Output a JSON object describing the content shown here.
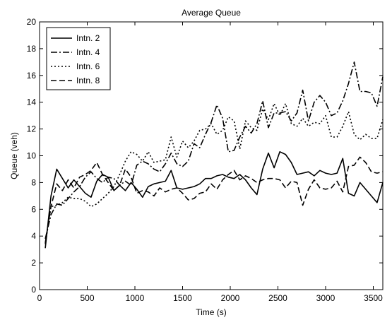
{
  "chart_data": {
    "type": "line",
    "title": "Average Queue",
    "xlabel": "Time (s)",
    "ylabel": "Queue (veh)",
    "xlim": [
      0,
      3600
    ],
    "ylim": [
      0,
      20
    ],
    "x_ticks": [
      0,
      500,
      1000,
      1500,
      2000,
      2500,
      3000,
      3500
    ],
    "y_ticks": [
      0,
      2,
      4,
      6,
      8,
      10,
      12,
      14,
      16,
      18,
      20
    ],
    "grid": false,
    "legend_position": "top-left",
    "x": [
      60,
      120,
      180,
      240,
      300,
      360,
      420,
      480,
      540,
      600,
      660,
      720,
      780,
      840,
      900,
      960,
      1020,
      1080,
      1140,
      1200,
      1260,
      1320,
      1380,
      1440,
      1500,
      1560,
      1620,
      1680,
      1740,
      1800,
      1860,
      1920,
      1980,
      2040,
      2100,
      2160,
      2220,
      2280,
      2340,
      2400,
      2460,
      2520,
      2580,
      2640,
      2700,
      2760,
      2820,
      2880,
      2940,
      3000,
      3060,
      3120,
      3180,
      3240,
      3300,
      3360,
      3420,
      3480,
      3540,
      3600
    ],
    "series": [
      {
        "name": "Intn. 2",
        "style": "solid",
        "values": [
          3.1,
          7.0,
          9.0,
          8.3,
          7.6,
          8.2,
          7.7,
          7.2,
          6.9,
          8.1,
          8.6,
          8.4,
          7.4,
          7.8,
          7.4,
          8.0,
          7.5,
          6.9,
          7.7,
          7.9,
          8.0,
          8.1,
          8.9,
          7.6,
          7.5,
          7.6,
          7.7,
          7.9,
          8.3,
          8.3,
          8.5,
          8.6,
          8.4,
          8.3,
          8.6,
          8.2,
          7.6,
          7.1,
          9.0,
          10.2,
          9.1,
          10.3,
          10.1,
          9.5,
          8.6,
          8.7,
          8.8,
          8.5,
          8.9,
          8.7,
          8.6,
          8.7,
          9.8,
          7.2,
          7.0,
          8.0,
          7.5,
          7.0,
          6.5,
          8.0
        ]
      },
      {
        "name": "Intn. 4",
        "style": "dashdot",
        "values": [
          3.8,
          5.6,
          6.4,
          6.3,
          6.8,
          7.3,
          7.7,
          8.4,
          8.8,
          8.3,
          8.0,
          8.4,
          8.3,
          7.8,
          8.1,
          7.8,
          9.3,
          9.6,
          9.4,
          9.0,
          8.8,
          9.4,
          10.2,
          9.4,
          9.2,
          9.6,
          10.9,
          10.6,
          11.6,
          12.5,
          13.8,
          12.8,
          10.3,
          10.4,
          11.4,
          12.2,
          11.7,
          12.4,
          14.1,
          12.1,
          13.2,
          13.2,
          13.3,
          12.6,
          13.2,
          14.9,
          12.6,
          14.0,
          14.5,
          14.0,
          13.0,
          13.2,
          14.1,
          15.4,
          17.0,
          14.8,
          14.8,
          14.7,
          13.7,
          15.9
        ]
      },
      {
        "name": "Intn. 6",
        "style": "dotted",
        "values": [
          3.4,
          6.2,
          6.3,
          6.5,
          6.9,
          6.8,
          6.8,
          6.6,
          6.2,
          6.4,
          6.8,
          7.2,
          7.7,
          8.6,
          9.6,
          10.3,
          10.1,
          9.6,
          10.3,
          9.5,
          9.6,
          9.7,
          11.4,
          9.9,
          11.1,
          10.6,
          11.1,
          11.9,
          12.0,
          12.4,
          11.6,
          11.9,
          12.9,
          12.6,
          10.5,
          12.6,
          12.1,
          11.9,
          13.5,
          12.7,
          13.9,
          13.0,
          13.9,
          12.4,
          12.2,
          12.8,
          12.2,
          12.5,
          12.4,
          13.0,
          11.4,
          11.4,
          12.2,
          13.3,
          11.6,
          11.2,
          11.6,
          11.3,
          11.3,
          12.7
        ]
      },
      {
        "name": "Intn. 8",
        "style": "dashed",
        "values": [
          3.5,
          6.2,
          7.9,
          7.4,
          8.2,
          7.6,
          8.4,
          8.6,
          8.9,
          9.5,
          8.6,
          8.0,
          7.4,
          7.8,
          9.0,
          8.4,
          7.2,
          7.4,
          7.3,
          7.0,
          7.6,
          7.3,
          7.5,
          7.6,
          7.2,
          6.7,
          6.8,
          7.2,
          7.3,
          7.9,
          7.5,
          8.2,
          8.6,
          8.9,
          8.2,
          8.5,
          8.3,
          8.0,
          8.2,
          8.3,
          8.3,
          8.2,
          7.6,
          8.1,
          8.0,
          6.3,
          7.5,
          8.2,
          7.6,
          7.5,
          7.6,
          8.1,
          7.3,
          9.2,
          9.3,
          9.9,
          9.5,
          8.8,
          8.7,
          8.8
        ]
      }
    ]
  }
}
